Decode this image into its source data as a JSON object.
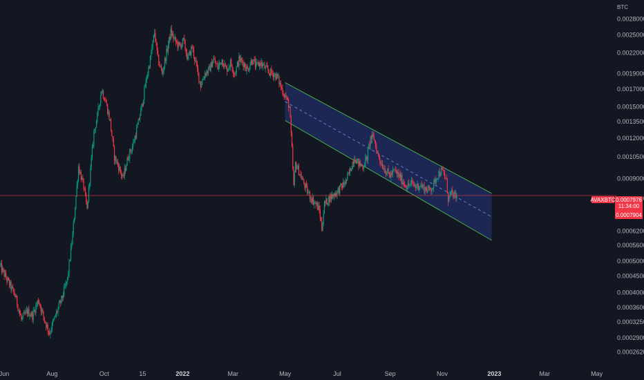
{
  "chart_data": {
    "type": "candlestick",
    "symbol": "AVAXBTC",
    "y_unit": "BTC",
    "y_scale": "log",
    "ylim": [
      0.000249,
      0.00305
    ],
    "y_ticks": [
      0.0028,
      0.0025,
      0.0022,
      0.0019,
      0.0017,
      0.0015,
      0.00135,
      0.0012,
      0.00105,
      0.0009,
      0.00078,
      0.00062,
      0.00056,
      0.0005,
      0.00045,
      0.0004,
      0.00036,
      0.000325,
      0.00029,
      0.000262
    ],
    "y_tick_labels": [
      "0.0028000",
      "0.0025000",
      "0.0022000",
      "0.0019000",
      "0.0017000",
      "0.0015000",
      "0.0013500",
      "0.0012000",
      "0.0010500",
      "0.0009000",
      "0.0007800",
      "0.0006200",
      "0.0005600",
      "0.0005000",
      "0.0004500",
      "0.0004000",
      "0.0003600",
      "0.0003250",
      "0.0002900",
      "0.0002620"
    ],
    "x_range": [
      "2021-06-01",
      "2023-05-24"
    ],
    "x_ticks": [
      {
        "date": "2021-06-01",
        "label": "Jun",
        "bold": false
      },
      {
        "date": "2021-08-01",
        "label": "Aug",
        "bold": false
      },
      {
        "date": "2021-10-01",
        "label": "Oct",
        "bold": false
      },
      {
        "date": "2021-11-15",
        "label": "15",
        "bold": false
      },
      {
        "date": "2022-01-01",
        "label": "2022",
        "bold": true
      },
      {
        "date": "2022-03-01",
        "label": "Mar",
        "bold": false
      },
      {
        "date": "2022-05-01",
        "label": "May",
        "bold": false
      },
      {
        "date": "2022-07-01",
        "label": "Jul",
        "bold": false
      },
      {
        "date": "2022-09-01",
        "label": "Sep",
        "bold": false
      },
      {
        "date": "2022-11-01",
        "label": "Nov",
        "bold": false
      },
      {
        "date": "2023-01-01",
        "label": "2023",
        "bold": true
      },
      {
        "date": "2023-03-01",
        "label": "Mar",
        "bold": false
      },
      {
        "date": "2023-05-01",
        "label": "May",
        "bold": false
      }
    ],
    "price_path": [
      [
        "2021-06-01",
        0.00049
      ],
      [
        "2021-06-08",
        0.00045
      ],
      [
        "2021-06-14",
        0.00042
      ],
      [
        "2021-06-20",
        0.00039
      ],
      [
        "2021-06-27",
        0.00033
      ],
      [
        "2021-07-04",
        0.00035
      ],
      [
        "2021-07-10",
        0.00034
      ],
      [
        "2021-07-17",
        0.00038
      ],
      [
        "2021-07-24",
        0.00033
      ],
      [
        "2021-07-30",
        0.0003
      ],
      [
        "2021-08-06",
        0.00034
      ],
      [
        "2021-08-13",
        0.00038
      ],
      [
        "2021-08-20",
        0.00044
      ],
      [
        "2021-08-26",
        0.0006
      ],
      [
        "2021-09-02",
        0.00098
      ],
      [
        "2021-09-08",
        0.00085
      ],
      [
        "2021-09-12",
        0.00072
      ],
      [
        "2021-09-15",
        0.0009
      ],
      [
        "2021-09-20",
        0.00125
      ],
      [
        "2021-09-24",
        0.0014
      ],
      [
        "2021-09-29",
        0.0017
      ],
      [
        "2021-10-04",
        0.00155
      ],
      [
        "2021-10-09",
        0.00135
      ],
      [
        "2021-10-14",
        0.00105
      ],
      [
        "2021-10-19",
        0.00098
      ],
      [
        "2021-10-24",
        0.0009
      ],
      [
        "2021-10-30",
        0.00105
      ],
      [
        "2021-11-05",
        0.00115
      ],
      [
        "2021-11-10",
        0.0013
      ],
      [
        "2021-11-15",
        0.0015
      ],
      [
        "2021-11-20",
        0.0018
      ],
      [
        "2021-11-25",
        0.0021
      ],
      [
        "2021-11-30",
        0.00255
      ],
      [
        "2021-12-04",
        0.0021
      ],
      [
        "2021-12-09",
        0.0019
      ],
      [
        "2021-12-14",
        0.0022
      ],
      [
        "2021-12-19",
        0.00255
      ],
      [
        "2021-12-24",
        0.0024
      ],
      [
        "2021-12-29",
        0.0023
      ],
      [
        "2022-01-03",
        0.0024
      ],
      [
        "2022-01-08",
        0.0021
      ],
      [
        "2022-01-13",
        0.0023
      ],
      [
        "2022-01-18",
        0.002
      ],
      [
        "2022-01-23",
        0.00175
      ],
      [
        "2022-01-28",
        0.0019
      ],
      [
        "2022-02-02",
        0.00195
      ],
      [
        "2022-02-07",
        0.0021
      ],
      [
        "2022-02-12",
        0.00198
      ],
      [
        "2022-02-17",
        0.0021
      ],
      [
        "2022-02-22",
        0.00195
      ],
      [
        "2022-02-27",
        0.00205
      ],
      [
        "2022-03-04",
        0.0019
      ],
      [
        "2022-03-09",
        0.0021
      ],
      [
        "2022-03-14",
        0.00205
      ],
      [
        "2022-03-19",
        0.00195
      ],
      [
        "2022-03-24",
        0.0021
      ],
      [
        "2022-03-29",
        0.002
      ],
      [
        "2022-04-03",
        0.00205
      ],
      [
        "2022-04-08",
        0.00198
      ],
      [
        "2022-04-13",
        0.00192
      ],
      [
        "2022-04-18",
        0.0019
      ],
      [
        "2022-04-23",
        0.00185
      ],
      [
        "2022-04-28",
        0.0017
      ],
      [
        "2022-05-03",
        0.0016
      ],
      [
        "2022-05-07",
        0.0015
      ],
      [
        "2022-05-10",
        0.0011
      ],
      [
        "2022-05-12",
        0.00085
      ],
      [
        "2022-05-14",
        0.001
      ],
      [
        "2022-05-18",
        0.00095
      ],
      [
        "2022-05-23",
        0.00088
      ],
      [
        "2022-05-28",
        0.00082
      ],
      [
        "2022-06-02",
        0.00078
      ],
      [
        "2022-06-07",
        0.00075
      ],
      [
        "2022-06-11",
        0.00072
      ],
      [
        "2022-06-14",
        0.00063
      ],
      [
        "2022-06-17",
        0.00075
      ],
      [
        "2022-06-22",
        0.00078
      ],
      [
        "2022-06-27",
        0.0008
      ],
      [
        "2022-07-02",
        0.00082
      ],
      [
        "2022-07-07",
        0.00085
      ],
      [
        "2022-07-12",
        0.00088
      ],
      [
        "2022-07-17",
        0.00095
      ],
      [
        "2022-07-22",
        0.00105
      ],
      [
        "2022-07-27",
        0.001
      ],
      [
        "2022-08-01",
        0.00098
      ],
      [
        "2022-08-06",
        0.00105
      ],
      [
        "2022-08-10",
        0.0012
      ],
      [
        "2022-08-14",
        0.0012
      ],
      [
        "2022-08-18",
        0.00108
      ],
      [
        "2022-08-23",
        0.001
      ],
      [
        "2022-08-28",
        0.00095
      ],
      [
        "2022-09-02",
        0.00092
      ],
      [
        "2022-09-07",
        0.00095
      ],
      [
        "2022-09-12",
        0.00092
      ],
      [
        "2022-09-17",
        0.00088
      ],
      [
        "2022-09-22",
        0.00085
      ],
      [
        "2022-09-27",
        0.00087
      ],
      [
        "2022-10-02",
        0.00085
      ],
      [
        "2022-10-07",
        0.00086
      ],
      [
        "2022-10-12",
        0.00084
      ],
      [
        "2022-10-17",
        0.00083
      ],
      [
        "2022-10-22",
        0.00085
      ],
      [
        "2022-10-27",
        0.00092
      ],
      [
        "2022-11-01",
        0.00095
      ],
      [
        "2022-11-04",
        0.00093
      ],
      [
        "2022-11-07",
        0.00088
      ],
      [
        "2022-11-09",
        0.00078
      ],
      [
        "2022-11-12",
        0.00081
      ],
      [
        "2022-11-15",
        0.0008
      ],
      [
        "2022-11-18",
        0.00079
      ]
    ],
    "channel": {
      "upper": [
        [
          "2022-05-01",
          0.00178
        ],
        [
          "2022-12-29",
          0.00081
        ]
      ],
      "lower": [
        [
          "2022-05-01",
          0.00136
        ],
        [
          "2022-12-29",
          0.00058
        ]
      ],
      "fill": "#1e2a5c",
      "edge": "#4caf50",
      "midline": "#6a7fc8"
    },
    "last_price": 0.0007976,
    "countdown": "11:34:00",
    "secondary_price": 0.0007904,
    "colors": {
      "up": "#089981",
      "down": "#f23645",
      "background": "#131722",
      "price_line": "#f23645"
    }
  },
  "labels": {
    "symbol": "AVAXBTC",
    "last_price": "0.0007976",
    "countdown": "11:34:00",
    "secondary_price": "0.0007904",
    "unit": "BTC"
  }
}
